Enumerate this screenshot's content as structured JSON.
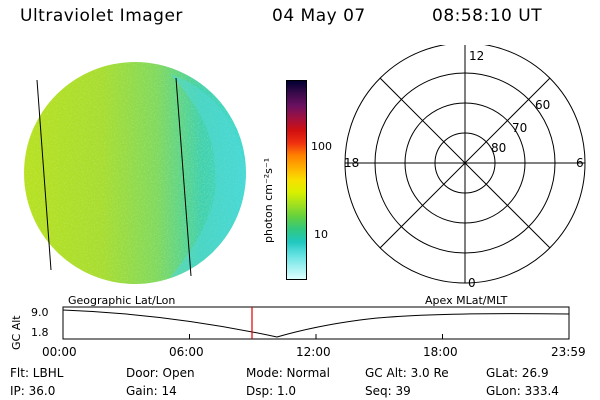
{
  "header": {
    "instrument": "Ultraviolet Imager",
    "date": "04 May 07",
    "time": "08:58:10 UT"
  },
  "colorbar": {
    "label": "photon cm⁻²s⁻¹",
    "ticks": [
      "100",
      "10"
    ],
    "scale": "log",
    "colors": [
      "#000033",
      "#3a0a4a",
      "#6a1060",
      "#a01040",
      "#d01010",
      "#f03010",
      "#ff8000",
      "#ffb000",
      "#f8e000",
      "#d8f000",
      "#a0e020",
      "#60d040",
      "#30c880",
      "#20c8c0",
      "#60e0e0",
      "#a0f0f0",
      "#e0ffff"
    ]
  },
  "polar_plot": {
    "hour_labels": [
      "12",
      "18",
      "6",
      "0"
    ],
    "lat_labels": [
      "60",
      "70",
      "80"
    ]
  },
  "timeline": {
    "left_title": "Geographic Lat/Lon",
    "right_title": "Apex  MLat/MLT",
    "y_label": "GC Alt",
    "y_ticks": [
      "9.0",
      "1.8"
    ],
    "x_ticks": [
      "00:00",
      "06:00",
      "12:00",
      "18:00",
      "23:59"
    ],
    "current_time": "08:58"
  },
  "info": {
    "filter": "Flt: LBHL",
    "ip": "IP: 36.0",
    "door": "Door: Open",
    "gain": "Gain: 14",
    "mode": "Mode: Normal",
    "dsp": "Dsp:    1.0",
    "gc_alt": "GC Alt: 3.0 Re",
    "seq": "Seq: 39",
    "glat": "GLat:  26.9",
    "glon": "GLon: 333.4"
  }
}
